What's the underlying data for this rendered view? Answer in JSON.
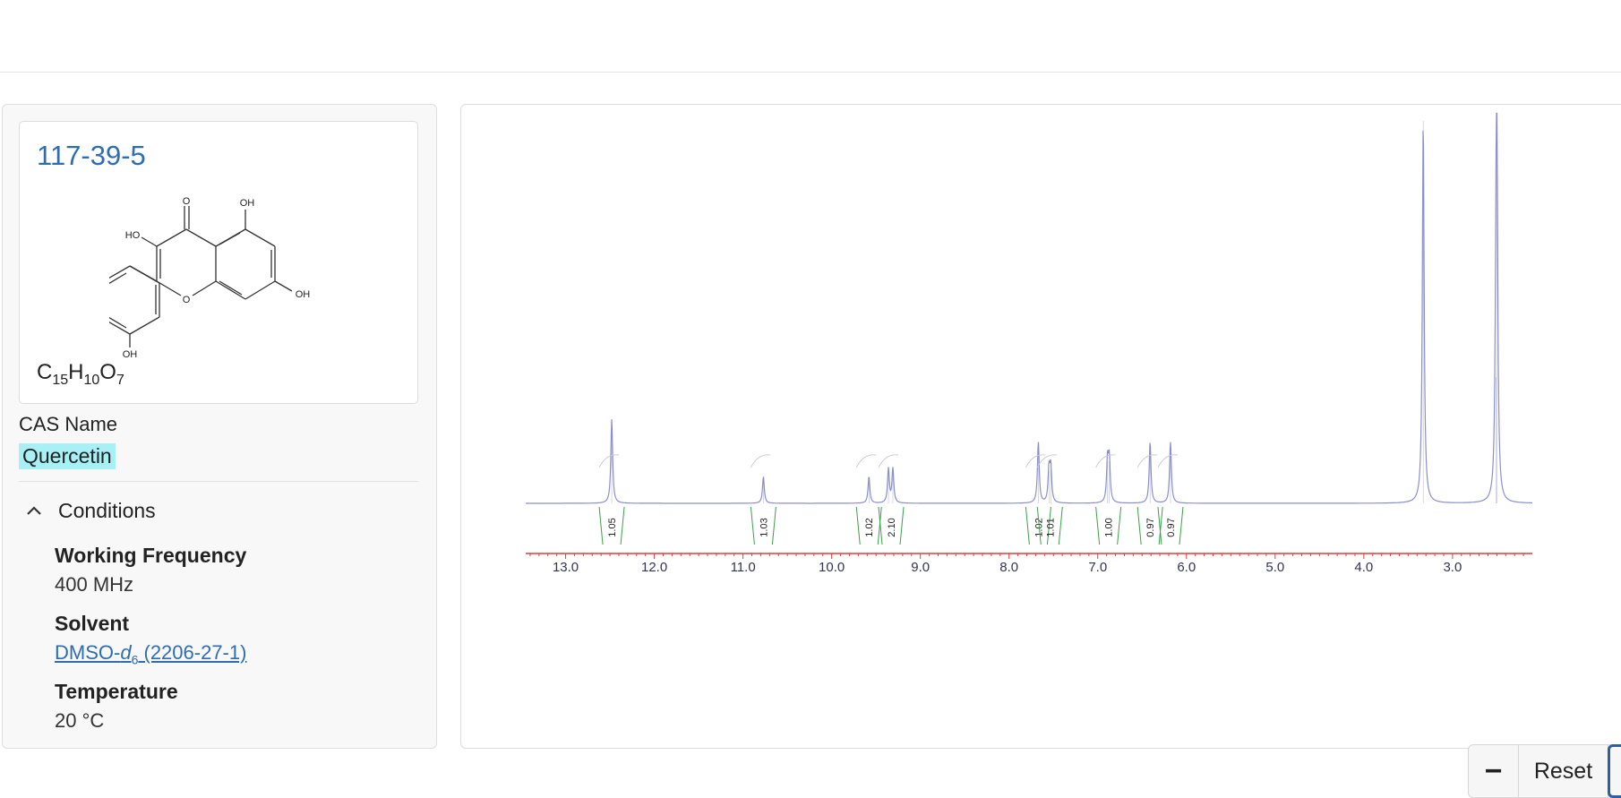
{
  "compound": {
    "cas_number": "117-39-5",
    "formula": {
      "parts": [
        {
          "el": "C",
          "n": "15"
        },
        {
          "el": "H",
          "n": "10"
        },
        {
          "el": "O",
          "n": "7"
        }
      ]
    },
    "structure_labels": {
      "o_carbonyl": "O",
      "oh_5": "OH",
      "oh_3": "HO",
      "oh_7": "OH",
      "o_ring": "O",
      "oh_4p": "HO",
      "oh_3p": "OH"
    },
    "cas_name_label": "CAS Name",
    "cas_name": "Quercetin"
  },
  "conditions": {
    "title": "Conditions",
    "toggle_icon": "chevron-up-icon",
    "frequency_label": "Working Frequency",
    "frequency_value": "400 MHz",
    "solvent_label": "Solvent",
    "solvent_prefix": "DMSO-",
    "solvent_italic": "d",
    "solvent_sub": "6",
    "solvent_suffix": " (2206-27-1)",
    "temperature_label": "Temperature",
    "temperature_value": "20 °C"
  },
  "zoom_controls": {
    "minus": "−",
    "reset": "Reset",
    "plus": "+"
  },
  "chart_data": {
    "type": "line",
    "title": "",
    "xlabel": "",
    "ylabel": "",
    "x_axis": "chemical shift (ppm), reversed",
    "xlim": [
      13.45,
      2.1
    ],
    "ticks": [
      "13.0",
      "12.0",
      "11.0",
      "10.0",
      "9.0",
      "8.0",
      "7.0",
      "6.0",
      "5.0",
      "4.0",
      "3.0"
    ],
    "tick_values": [
      13.0,
      12.0,
      11.0,
      10.0,
      9.0,
      8.0,
      7.0,
      6.0,
      5.0,
      4.0,
      3.0
    ],
    "peaks": [
      {
        "ppm": 12.48,
        "height": 0.22
      },
      {
        "ppm": 10.77,
        "height": 0.07
      },
      {
        "ppm": 9.58,
        "height": 0.07
      },
      {
        "ppm": 9.36,
        "height": 0.09
      },
      {
        "ppm": 9.31,
        "height": 0.09
      },
      {
        "ppm": 7.67,
        "height": 0.16
      },
      {
        "ppm": 7.55,
        "height": 0.085
      },
      {
        "ppm": 7.53,
        "height": 0.09
      },
      {
        "ppm": 6.89,
        "height": 0.11
      },
      {
        "ppm": 6.87,
        "height": 0.11
      },
      {
        "ppm": 6.41,
        "height": 0.16
      },
      {
        "ppm": 6.18,
        "height": 0.16
      },
      {
        "ppm": 3.33,
        "height": 1.0
      },
      {
        "ppm": 2.5,
        "height": 0.92
      },
      {
        "ppm": 2.51,
        "height": 0.33
      }
    ],
    "integrations": [
      {
        "ppm": 12.48,
        "label": "1.05"
      },
      {
        "ppm": 10.77,
        "label": "1.03"
      },
      {
        "ppm": 9.58,
        "label": "1.02"
      },
      {
        "ppm": 9.33,
        "label": "2.10"
      },
      {
        "ppm": 7.67,
        "label": "1.02"
      },
      {
        "ppm": 7.54,
        "label": "1.01"
      },
      {
        "ppm": 6.88,
        "label": "1.00"
      },
      {
        "ppm": 6.41,
        "label": "0.97"
      },
      {
        "ppm": 6.18,
        "label": "0.97"
      }
    ],
    "colors": {
      "spectrum": "#8b8fcb",
      "integral": "#3aa04a",
      "axis": "#e23a3a",
      "tick_label": "#333355"
    }
  }
}
